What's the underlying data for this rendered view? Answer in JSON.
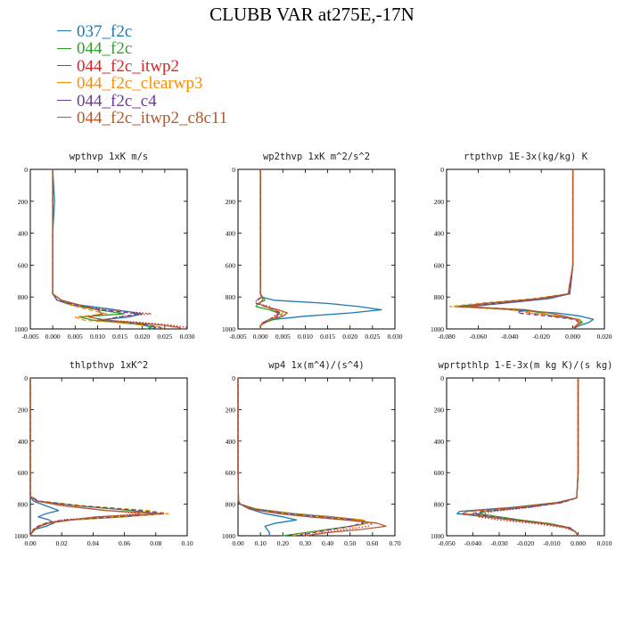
{
  "title": "CLUBB VAR at275E,-17N",
  "legend": [
    {
      "label": "037_f2c",
      "color": "#1f77b4",
      "dash": "solid"
    },
    {
      "label": "044_f2c",
      "color": "#2ca02c",
      "dash": "solid"
    },
    {
      "label": "044_f2c_itwp2",
      "color": "#d62728",
      "dash": "dot"
    },
    {
      "label": "044_f2c_clearwp3",
      "color": "#ff8c00",
      "dash": "dash"
    },
    {
      "label": "044_f2c_c4",
      "color": "#6a3d9a",
      "dash": "dash"
    },
    {
      "label": "044_f2c_itwp2_c8c11",
      "color": "#b5582a",
      "dash": "solid"
    }
  ],
  "chart_data": [
    {
      "type": "line",
      "title": "wpthvp  1xK m/s",
      "xlim": [
        -0.005,
        0.03
      ],
      "ylim": [
        1000,
        0
      ],
      "xticks": [
        "-0.005",
        "0.000",
        "0.005",
        "0.010",
        "0.015",
        "0.020",
        "0.025",
        "0.030"
      ],
      "yticks": [
        "0",
        "200",
        "400",
        "600",
        "800",
        "1000"
      ],
      "y": [
        0,
        200,
        400,
        600,
        780,
        820,
        850,
        880,
        905,
        925,
        945,
        960,
        975,
        990,
        1000
      ],
      "series": [
        {
          "values": [
            0,
            0.0004,
            0,
            0,
            0,
            0.001,
            0.006,
            0.014,
            0.02,
            0.017,
            0.01,
            0.018,
            0.021,
            0.023,
            0.022
          ]
        },
        {
          "values": [
            0,
            0,
            0,
            0,
            0,
            0.001,
            0.004,
            0.01,
            0.016,
            0.006,
            0.009,
            0.015,
            0.02,
            0.022,
            0.021
          ]
        },
        {
          "values": [
            0,
            0,
            0,
            0,
            0,
            0.001,
            0.005,
            0.012,
            0.022,
            0.014,
            0.012,
            0.02,
            0.026,
            0.03,
            0.03
          ]
        },
        {
          "values": [
            0,
            0,
            0,
            0,
            0,
            0.002,
            0.004,
            0.008,
            0.012,
            0.005,
            0.007,
            0.014,
            0.02,
            0.024,
            0.025
          ]
        },
        {
          "values": [
            0,
            0,
            0,
            0,
            0,
            0.001,
            0.005,
            0.011,
            0.019,
            0.015,
            0.011,
            0.017,
            0.021,
            0.024,
            0.024
          ]
        },
        {
          "values": [
            0,
            0,
            0,
            0,
            0,
            0.002,
            0.006,
            0.01,
            0.011,
            0.008,
            0.012,
            0.018,
            0.024,
            0.028,
            0.029
          ]
        }
      ]
    },
    {
      "type": "line",
      "title": "wp2thvp  1xK m^2/s^2",
      "xlim": [
        -0.005,
        0.03
      ],
      "ylim": [
        1000,
        0
      ],
      "xticks": [
        "-0.005",
        "0.000",
        "0.005",
        "0.010",
        "0.015",
        "0.020",
        "0.025",
        "0.030"
      ],
      "yticks": [
        "0",
        "200",
        "400",
        "600",
        "800",
        "1000"
      ],
      "y": [
        0,
        200,
        400,
        600,
        780,
        800,
        820,
        840,
        860,
        880,
        900,
        920,
        940,
        960,
        980,
        1000
      ],
      "series": [
        {
          "values": [
            0,
            0,
            0,
            0,
            0,
            0.0003,
            0.003,
            0.015,
            0.022,
            0.027,
            0.02,
            0.01,
            0.003,
            0.001,
            0,
            0
          ]
        },
        {
          "values": [
            0,
            0,
            0,
            0,
            0,
            0.0005,
            0.001,
            -0.0005,
            -0.001,
            0.002,
            0.004,
            0.005,
            0.003,
            0.001,
            0,
            0
          ]
        },
        {
          "values": [
            0,
            0,
            0,
            0,
            0,
            0.0002,
            -0.001,
            -0.0008,
            0.002,
            0.003,
            0.004,
            0.003,
            0.002,
            0.001,
            0,
            0
          ]
        },
        {
          "values": [
            0,
            0,
            0,
            0,
            0,
            0.0002,
            -0.0008,
            -0.001,
            0.001,
            0.003,
            0.005,
            0.004,
            0.002,
            0.001,
            0,
            0
          ]
        },
        {
          "values": [
            0,
            0,
            0,
            0,
            0,
            0.0002,
            -0.0006,
            -0.0009,
            0.0015,
            0.003,
            0.0045,
            0.0035,
            0.002,
            0.001,
            0,
            0
          ]
        },
        {
          "values": [
            0,
            0,
            0,
            0,
            0,
            0.0003,
            0.0005,
            -0.0003,
            0.001,
            0.004,
            0.006,
            0.005,
            0.002,
            0.0005,
            0,
            0
          ]
        }
      ]
    },
    {
      "type": "line",
      "title": "rtpthvp  1E-3x(kg/kg) K",
      "xlim": [
        -0.08,
        0.02
      ],
      "ylim": [
        1000,
        0
      ],
      "xticks": [
        "-0.080",
        "-0.060",
        "-0.040",
        "-0.020",
        "0.000",
        "0.020"
      ],
      "yticks": [
        "0",
        "200",
        "400",
        "600",
        "800",
        "1000"
      ],
      "y": [
        0,
        200,
        400,
        600,
        780,
        810,
        840,
        860,
        880,
        900,
        920,
        940,
        960,
        980,
        1000
      ],
      "series": [
        {
          "values": [
            0,
            0,
            0,
            0,
            -0.002,
            -0.015,
            -0.045,
            -0.065,
            -0.04,
            -0.01,
            0.005,
            0.013,
            0.01,
            0.004,
            0
          ]
        },
        {
          "values": [
            0,
            0,
            0,
            0,
            -0.002,
            -0.02,
            -0.055,
            -0.075,
            -0.03,
            -0.02,
            -0.012,
            0.004,
            0.006,
            0.002,
            0
          ]
        },
        {
          "values": [
            0,
            0,
            0,
            0,
            -0.002,
            -0.018,
            -0.045,
            -0.07,
            -0.035,
            -0.028,
            -0.01,
            0.003,
            0.005,
            0.003,
            0
          ]
        },
        {
          "values": [
            0,
            0,
            0,
            0,
            -0.003,
            -0.025,
            -0.06,
            -0.078,
            -0.04,
            -0.025,
            -0.008,
            0.003,
            0.005,
            0.002,
            0
          ]
        },
        {
          "values": [
            0,
            0,
            0,
            0,
            -0.002,
            -0.02,
            -0.05,
            -0.072,
            -0.032,
            -0.035,
            -0.015,
            0.001,
            0.004,
            0.002,
            0
          ]
        },
        {
          "values": [
            0,
            0,
            0,
            0,
            -0.003,
            -0.022,
            -0.056,
            -0.068,
            -0.03,
            -0.015,
            -0.005,
            0.002,
            0.004,
            0.002,
            0
          ]
        }
      ]
    },
    {
      "type": "line",
      "title": "thlpthvp  1xK^2",
      "xlim": [
        0,
        0.1
      ],
      "ylim": [
        1000,
        0
      ],
      "xticks": [
        "0.00",
        "0.02",
        "0.04",
        "0.06",
        "0.08",
        "0.10"
      ],
      "yticks": [
        "0",
        "200",
        "400",
        "600",
        "800",
        "1000"
      ],
      "y": [
        0,
        200,
        400,
        600,
        750,
        780,
        810,
        840,
        860,
        880,
        900,
        920,
        940,
        960,
        980,
        1000
      ],
      "series": [
        {
          "values": [
            0,
            0,
            0,
            0,
            0,
            0.002,
            0.01,
            0.018,
            0.01,
            0.005,
            0.012,
            0.015,
            0.01,
            0.003,
            0.001,
            0
          ]
        },
        {
          "values": [
            0,
            0,
            0,
            0,
            0,
            0.005,
            0.03,
            0.065,
            0.08,
            0.06,
            0.025,
            0.012,
            0.006,
            0.003,
            0.001,
            0
          ]
        },
        {
          "values": [
            0,
            0,
            0,
            0,
            0,
            0.004,
            0.02,
            0.05,
            0.07,
            0.045,
            0.02,
            0.01,
            0.005,
            0.002,
            0.001,
            0
          ]
        },
        {
          "values": [
            0,
            0,
            0,
            0,
            0,
            0.006,
            0.035,
            0.075,
            0.088,
            0.06,
            0.025,
            0.01,
            0.005,
            0.002,
            0.001,
            0
          ]
        },
        {
          "values": [
            0,
            0,
            0,
            0,
            0,
            0.005,
            0.03,
            0.07,
            0.085,
            0.055,
            0.022,
            0.01,
            0.005,
            0.002,
            0.001,
            0
          ]
        },
        {
          "values": [
            0,
            0,
            0,
            0,
            0,
            0.004,
            0.022,
            0.048,
            0.083,
            0.042,
            0.026,
            0.012,
            0.006,
            0.003,
            0.001,
            0
          ]
        }
      ]
    },
    {
      "type": "line",
      "title": "wp4  1x(m^4)/(s^4)",
      "xlim": [
        0,
        0.7
      ],
      "ylim": [
        1000,
        0
      ],
      "xticks": [
        "0.00",
        "0.10",
        "0.20",
        "0.30",
        "0.40",
        "0.50",
        "0.60",
        "0.70"
      ],
      "yticks": [
        "0",
        "200",
        "400",
        "600",
        "800",
        "1000"
      ],
      "y": [
        0,
        200,
        400,
        600,
        780,
        800,
        830,
        860,
        880,
        900,
        920,
        940,
        960,
        980,
        1000
      ],
      "series": [
        {
          "values": [
            0,
            0,
            0,
            0,
            0.002,
            0.01,
            0.05,
            0.12,
            0.2,
            0.26,
            0.17,
            0.12,
            0.13,
            0.14,
            0.14
          ]
        },
        {
          "values": [
            0,
            0,
            0,
            0,
            0.002,
            0.01,
            0.08,
            0.25,
            0.42,
            0.55,
            0.58,
            0.5,
            0.4,
            0.3,
            0.2
          ]
        },
        {
          "values": [
            0,
            0,
            0,
            0,
            0.002,
            0.01,
            0.06,
            0.2,
            0.35,
            0.52,
            0.6,
            0.58,
            0.48,
            0.38,
            0.3
          ]
        },
        {
          "values": [
            0,
            0,
            0,
            0,
            0.002,
            0.01,
            0.08,
            0.25,
            0.42,
            0.56,
            0.58,
            0.52,
            0.42,
            0.32,
            0.24
          ]
        },
        {
          "values": [
            0,
            0,
            0,
            0,
            0.002,
            0.01,
            0.07,
            0.22,
            0.38,
            0.52,
            0.56,
            0.5,
            0.42,
            0.34,
            0.26
          ]
        },
        {
          "values": [
            0,
            0,
            0,
            0,
            0.002,
            0.01,
            0.05,
            0.18,
            0.32,
            0.48,
            0.62,
            0.66,
            0.55,
            0.4,
            0.3
          ]
        }
      ]
    },
    {
      "type": "line",
      "title": "wprtpthlp  1-E-3x(m kg K)/(s kg)",
      "xlim": [
        -0.05,
        0.01
      ],
      "ylim": [
        1000,
        0
      ],
      "xticks": [
        "-0.050",
        "-0.040",
        "-0.030",
        "-0.020",
        "-0.010",
        "0.000",
        "0.010"
      ],
      "yticks": [
        "0",
        "200",
        "400",
        "600",
        "800",
        "1000"
      ],
      "y": [
        0,
        200,
        400,
        600,
        760,
        790,
        820,
        845,
        860,
        880,
        900,
        925,
        950,
        975,
        1000
      ],
      "series": [
        {
          "values": [
            0,
            0,
            0,
            0,
            -0.0005,
            -0.008,
            -0.025,
            -0.045,
            -0.046,
            -0.035,
            -0.025,
            -0.012,
            -0.004,
            -0.001,
            0
          ]
        },
        {
          "values": [
            0,
            0,
            0,
            0,
            -0.0005,
            -0.007,
            -0.02,
            -0.035,
            -0.038,
            -0.03,
            -0.022,
            -0.01,
            -0.003,
            -0.001,
            0
          ]
        },
        {
          "values": [
            0,
            0,
            0,
            0,
            -0.0005,
            -0.006,
            -0.018,
            -0.032,
            -0.036,
            -0.038,
            -0.03,
            -0.015,
            -0.005,
            -0.001,
            0
          ]
        },
        {
          "values": [
            0,
            0,
            0,
            0,
            -0.0005,
            -0.007,
            -0.022,
            -0.04,
            -0.041,
            -0.033,
            -0.024,
            -0.011,
            -0.003,
            -0.001,
            0
          ]
        },
        {
          "values": [
            0,
            0,
            0,
            0,
            -0.0005,
            -0.006,
            -0.019,
            -0.036,
            -0.04,
            -0.032,
            -0.023,
            -0.011,
            -0.003,
            -0.001,
            0
          ]
        },
        {
          "values": [
            0,
            0,
            0,
            0,
            -0.0005,
            -0.008,
            -0.024,
            -0.042,
            -0.044,
            -0.034,
            -0.025,
            -0.012,
            -0.004,
            -0.001,
            0
          ]
        }
      ]
    }
  ]
}
